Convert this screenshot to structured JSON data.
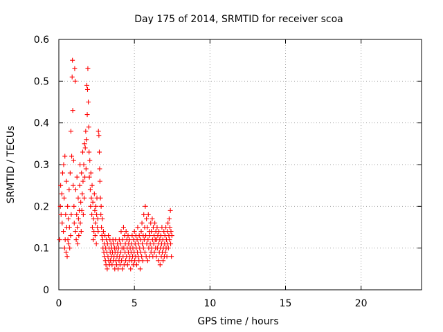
{
  "chart_data": {
    "type": "scatter",
    "title": "Day 175 of 2014, SRMTID for receiver scoa",
    "xlabel": "GPS time / hours",
    "ylabel": "SRMTID / TECUs",
    "xlim": [
      0,
      24
    ],
    "ylim": [
      0,
      0.6
    ],
    "xticks": [
      0,
      5,
      10,
      15,
      20
    ],
    "xtick_labels": [
      "0",
      "5",
      "10",
      "15",
      "20"
    ],
    "yticks": [
      0,
      0.1,
      0.2,
      0.3,
      0.4,
      0.5,
      0.6
    ],
    "ytick_labels": [
      "0",
      "0.1",
      "0.2",
      "0.3",
      "0.4",
      "0.5",
      "0.6"
    ],
    "grid": true,
    "marker": "plus",
    "color": "#ff0000",
    "series": [
      {
        "name": "SRMTID",
        "points": [
          [
            0.05,
            0.12
          ],
          [
            0.1,
            0.2
          ],
          [
            0.12,
            0.25
          ],
          [
            0.15,
            0.18
          ],
          [
            0.2,
            0.23
          ],
          [
            0.22,
            0.16
          ],
          [
            0.25,
            0.28
          ],
          [
            0.3,
            0.14
          ],
          [
            0.32,
            0.3
          ],
          [
            0.35,
            0.22
          ],
          [
            0.38,
            0.1
          ],
          [
            0.4,
            0.32
          ],
          [
            0.42,
            0.12
          ],
          [
            0.45,
            0.18
          ],
          [
            0.48,
            0.09
          ],
          [
            0.5,
            0.26
          ],
          [
            0.52,
            0.15
          ],
          [
            0.55,
            0.08
          ],
          [
            0.58,
            0.2
          ],
          [
            0.6,
            0.12
          ],
          [
            0.62,
            0.17
          ],
          [
            0.65,
            0.11
          ],
          [
            0.68,
            0.24
          ],
          [
            0.7,
            0.15
          ],
          [
            0.72,
            0.1
          ],
          [
            0.75,
            0.28
          ],
          [
            0.78,
            0.13
          ],
          [
            0.8,
            0.38
          ],
          [
            0.82,
            0.18
          ],
          [
            0.85,
            0.32
          ],
          [
            0.88,
            0.51
          ],
          [
            0.9,
            0.55
          ],
          [
            0.92,
            0.43
          ],
          [
            0.95,
            0.25
          ],
          [
            0.98,
            0.31
          ],
          [
            1.0,
            0.2
          ],
          [
            1.02,
            0.16
          ],
          [
            1.05,
            0.53
          ],
          [
            1.08,
            0.5
          ],
          [
            1.1,
            0.14
          ],
          [
            1.12,
            0.24
          ],
          [
            1.15,
            0.12
          ],
          [
            1.18,
            0.18
          ],
          [
            1.2,
            0.27
          ],
          [
            1.22,
            0.15
          ],
          [
            1.25,
            0.11
          ],
          [
            1.28,
            0.22
          ],
          [
            1.3,
            0.17
          ],
          [
            1.32,
            0.13
          ],
          [
            1.35,
            0.19
          ],
          [
            1.38,
            0.25
          ],
          [
            1.4,
            0.3
          ],
          [
            1.42,
            0.16
          ],
          [
            1.45,
            0.21
          ],
          [
            1.48,
            0.14
          ],
          [
            1.5,
            0.28
          ],
          [
            1.52,
            0.19
          ],
          [
            1.55,
            0.23
          ],
          [
            1.58,
            0.33
          ],
          [
            1.6,
            0.26
          ],
          [
            1.62,
            0.18
          ],
          [
            1.65,
            0.3
          ],
          [
            1.68,
            0.22
          ],
          [
            1.7,
            0.35
          ],
          [
            1.72,
            0.27
          ],
          [
            1.75,
            0.34
          ],
          [
            1.78,
            0.38
          ],
          [
            1.8,
            0.29
          ],
          [
            1.82,
            0.36
          ],
          [
            1.85,
            0.49
          ],
          [
            1.88,
            0.42
          ],
          [
            1.9,
            0.48
          ],
          [
            1.92,
            0.53
          ],
          [
            1.95,
            0.45
          ],
          [
            1.98,
            0.39
          ],
          [
            2.0,
            0.33
          ],
          [
            2.02,
            0.27
          ],
          [
            2.05,
            0.31
          ],
          [
            2.08,
            0.24
          ],
          [
            2.1,
            0.2
          ],
          [
            2.12,
            0.28
          ],
          [
            2.15,
            0.22
          ],
          [
            2.18,
            0.18
          ],
          [
            2.2,
            0.25
          ],
          [
            2.22,
            0.15
          ],
          [
            2.25,
            0.21
          ],
          [
            2.28,
            0.12
          ],
          [
            2.3,
            0.17
          ],
          [
            2.32,
            0.14
          ],
          [
            2.35,
            0.23
          ],
          [
            2.38,
            0.19
          ],
          [
            2.4,
            0.13
          ],
          [
            2.42,
            0.16
          ],
          [
            2.45,
            0.2
          ],
          [
            2.48,
            0.11
          ],
          [
            2.5,
            0.18
          ],
          [
            2.52,
            0.22
          ],
          [
            2.55,
            0.15
          ],
          [
            2.58,
            0.17
          ],
          [
            2.6,
            0.14
          ],
          [
            2.62,
            0.38
          ],
          [
            2.65,
            0.37
          ],
          [
            2.68,
            0.33
          ],
          [
            2.7,
            0.29
          ],
          [
            2.72,
            0.26
          ],
          [
            2.75,
            0.22
          ],
          [
            2.78,
            0.18
          ],
          [
            2.8,
            0.2
          ],
          [
            2.82,
            0.15
          ],
          [
            2.85,
            0.13
          ],
          [
            2.88,
            0.17
          ],
          [
            2.9,
            0.12
          ],
          [
            2.92,
            0.1
          ],
          [
            2.95,
            0.14
          ],
          [
            2.98,
            0.09
          ],
          [
            3.0,
            0.11
          ],
          [
            3.02,
            0.08
          ],
          [
            3.05,
            0.13
          ],
          [
            3.08,
            0.07
          ],
          [
            3.1,
            0.1
          ],
          [
            3.12,
            0.06
          ],
          [
            3.15,
            0.12
          ],
          [
            3.18,
            0.09
          ],
          [
            3.2,
            0.05
          ],
          [
            3.22,
            0.11
          ],
          [
            3.25,
            0.08
          ],
          [
            3.28,
            0.13
          ],
          [
            3.3,
            0.07
          ],
          [
            3.32,
            0.1
          ],
          [
            3.35,
            0.06
          ],
          [
            3.38,
            0.12
          ],
          [
            3.4,
            0.09
          ],
          [
            3.42,
            0.07
          ],
          [
            3.45,
            0.11
          ],
          [
            3.48,
            0.08
          ],
          [
            3.5,
            0.1
          ],
          [
            3.52,
            0.06
          ],
          [
            3.55,
            0.09
          ],
          [
            3.58,
            0.12
          ],
          [
            3.6,
            0.07
          ],
          [
            3.62,
            0.11
          ],
          [
            3.65,
            0.08
          ],
          [
            3.68,
            0.1
          ],
          [
            3.7,
            0.05
          ],
          [
            3.72,
            0.09
          ],
          [
            3.75,
            0.12
          ],
          [
            3.78,
            0.07
          ],
          [
            3.8,
            0.1
          ],
          [
            3.82,
            0.06
          ],
          [
            3.85,
            0.08
          ],
          [
            3.88,
            0.11
          ],
          [
            3.9,
            0.09
          ],
          [
            3.92,
            0.05
          ],
          [
            3.95,
            0.1
          ],
          [
            3.98,
            0.07
          ],
          [
            4.0,
            0.12
          ],
          [
            4.02,
            0.08
          ],
          [
            4.05,
            0.06
          ],
          [
            4.08,
            0.11
          ],
          [
            4.1,
            0.09
          ],
          [
            4.12,
            0.14
          ],
          [
            4.15,
            0.07
          ],
          [
            4.18,
            0.1
          ],
          [
            4.2,
            0.05
          ],
          [
            4.22,
            0.12
          ],
          [
            4.25,
            0.08
          ],
          [
            4.28,
            0.15
          ],
          [
            4.3,
            0.1
          ],
          [
            4.32,
            0.06
          ],
          [
            4.35,
            0.13
          ],
          [
            4.38,
            0.09
          ],
          [
            4.4,
            0.11
          ],
          [
            4.42,
            0.07
          ],
          [
            4.45,
            0.14
          ],
          [
            4.48,
            0.08
          ],
          [
            4.5,
            0.12
          ],
          [
            4.52,
            0.1
          ],
          [
            4.55,
            0.06
          ],
          [
            4.58,
            0.13
          ],
          [
            4.6,
            0.09
          ],
          [
            4.62,
            0.11
          ],
          [
            4.65,
            0.07
          ],
          [
            4.68,
            0.12
          ],
          [
            4.7,
            0.08
          ],
          [
            4.72,
            0.1
          ],
          [
            4.75,
            0.05
          ],
          [
            4.78,
            0.09
          ],
          [
            4.8,
            0.11
          ],
          [
            4.82,
            0.07
          ],
          [
            4.85,
            0.13
          ],
          [
            4.88,
            0.08
          ],
          [
            4.9,
            0.1
          ],
          [
            4.92,
            0.06
          ],
          [
            4.95,
            0.12
          ],
          [
            4.98,
            0.09
          ],
          [
            5.0,
            0.14
          ],
          [
            5.02,
            0.07
          ],
          [
            5.05,
            0.11
          ],
          [
            5.08,
            0.08
          ],
          [
            5.1,
            0.13
          ],
          [
            5.12,
            0.1
          ],
          [
            5.15,
            0.06
          ],
          [
            5.18,
            0.12
          ],
          [
            5.2,
            0.09
          ],
          [
            5.22,
            0.15
          ],
          [
            5.25,
            0.08
          ],
          [
            5.28,
            0.11
          ],
          [
            5.3,
            0.07
          ],
          [
            5.32,
            0.13
          ],
          [
            5.35,
            0.1
          ],
          [
            5.38,
            0.05
          ],
          [
            5.4,
            0.12
          ],
          [
            5.42,
            0.09
          ],
          [
            5.45,
            0.14
          ],
          [
            5.48,
            0.08
          ],
          [
            5.5,
            0.16
          ],
          [
            5.52,
            0.11
          ],
          [
            5.55,
            0.07
          ],
          [
            5.58,
            0.13
          ],
          [
            5.6,
            0.1
          ],
          [
            5.62,
            0.18
          ],
          [
            5.65,
            0.12
          ],
          [
            5.68,
            0.15
          ],
          [
            5.7,
            0.09
          ],
          [
            5.72,
            0.2
          ],
          [
            5.75,
            0.13
          ],
          [
            5.78,
            0.08
          ],
          [
            5.8,
            0.17
          ],
          [
            5.82,
            0.11
          ],
          [
            5.85,
            0.15
          ],
          [
            5.88,
            0.07
          ],
          [
            5.9,
            0.12
          ],
          [
            5.92,
            0.18
          ],
          [
            5.95,
            0.1
          ],
          [
            5.98,
            0.14
          ],
          [
            6.0,
            0.08
          ],
          [
            6.02,
            0.13
          ],
          [
            6.05,
            0.11
          ],
          [
            6.08,
            0.16
          ],
          [
            6.1,
            0.09
          ],
          [
            6.12,
            0.14
          ],
          [
            6.15,
            0.1
          ],
          [
            6.18,
            0.17
          ],
          [
            6.2,
            0.12
          ],
          [
            6.22,
            0.08
          ],
          [
            6.25,
            0.15
          ],
          [
            6.28,
            0.11
          ],
          [
            6.3,
            0.13
          ],
          [
            6.32,
            0.09
          ],
          [
            6.35,
            0.16
          ],
          [
            6.38,
            0.12
          ],
          [
            6.4,
            0.1
          ],
          [
            6.42,
            0.14
          ],
          [
            6.45,
            0.08
          ],
          [
            6.48,
            0.12
          ],
          [
            6.5,
            0.15
          ],
          [
            6.52,
            0.1
          ],
          [
            6.55,
            0.13
          ],
          [
            6.58,
            0.07
          ],
          [
            6.6,
            0.11
          ],
          [
            6.62,
            0.14
          ],
          [
            6.65,
            0.09
          ],
          [
            6.68,
            0.12
          ],
          [
            6.7,
            0.06
          ],
          [
            6.72,
            0.1
          ],
          [
            6.75,
            0.13
          ],
          [
            6.78,
            0.08
          ],
          [
            6.8,
            0.11
          ],
          [
            6.82,
            0.15
          ],
          [
            6.85,
            0.09
          ],
          [
            6.88,
            0.12
          ],
          [
            6.9,
            0.07
          ],
          [
            6.92,
            0.1
          ],
          [
            6.95,
            0.14
          ],
          [
            6.98,
            0.08
          ],
          [
            7.0,
            0.11
          ],
          [
            7.02,
            0.13
          ],
          [
            7.05,
            0.09
          ],
          [
            7.08,
            0.15
          ],
          [
            7.1,
            0.1
          ],
          [
            7.12,
            0.12
          ],
          [
            7.15,
            0.08
          ],
          [
            7.18,
            0.14
          ],
          [
            7.2,
            0.11
          ],
          [
            7.22,
            0.16
          ],
          [
            7.25,
            0.1
          ],
          [
            7.28,
            0.13
          ],
          [
            7.3,
            0.17
          ],
          [
            7.32,
            0.12
          ],
          [
            7.35,
            0.15
          ],
          [
            7.38,
            0.19
          ],
          [
            7.4,
            0.11
          ],
          [
            7.42,
            0.14
          ],
          [
            7.45,
            0.08
          ],
          [
            7.48,
            0.13
          ]
        ]
      }
    ]
  }
}
